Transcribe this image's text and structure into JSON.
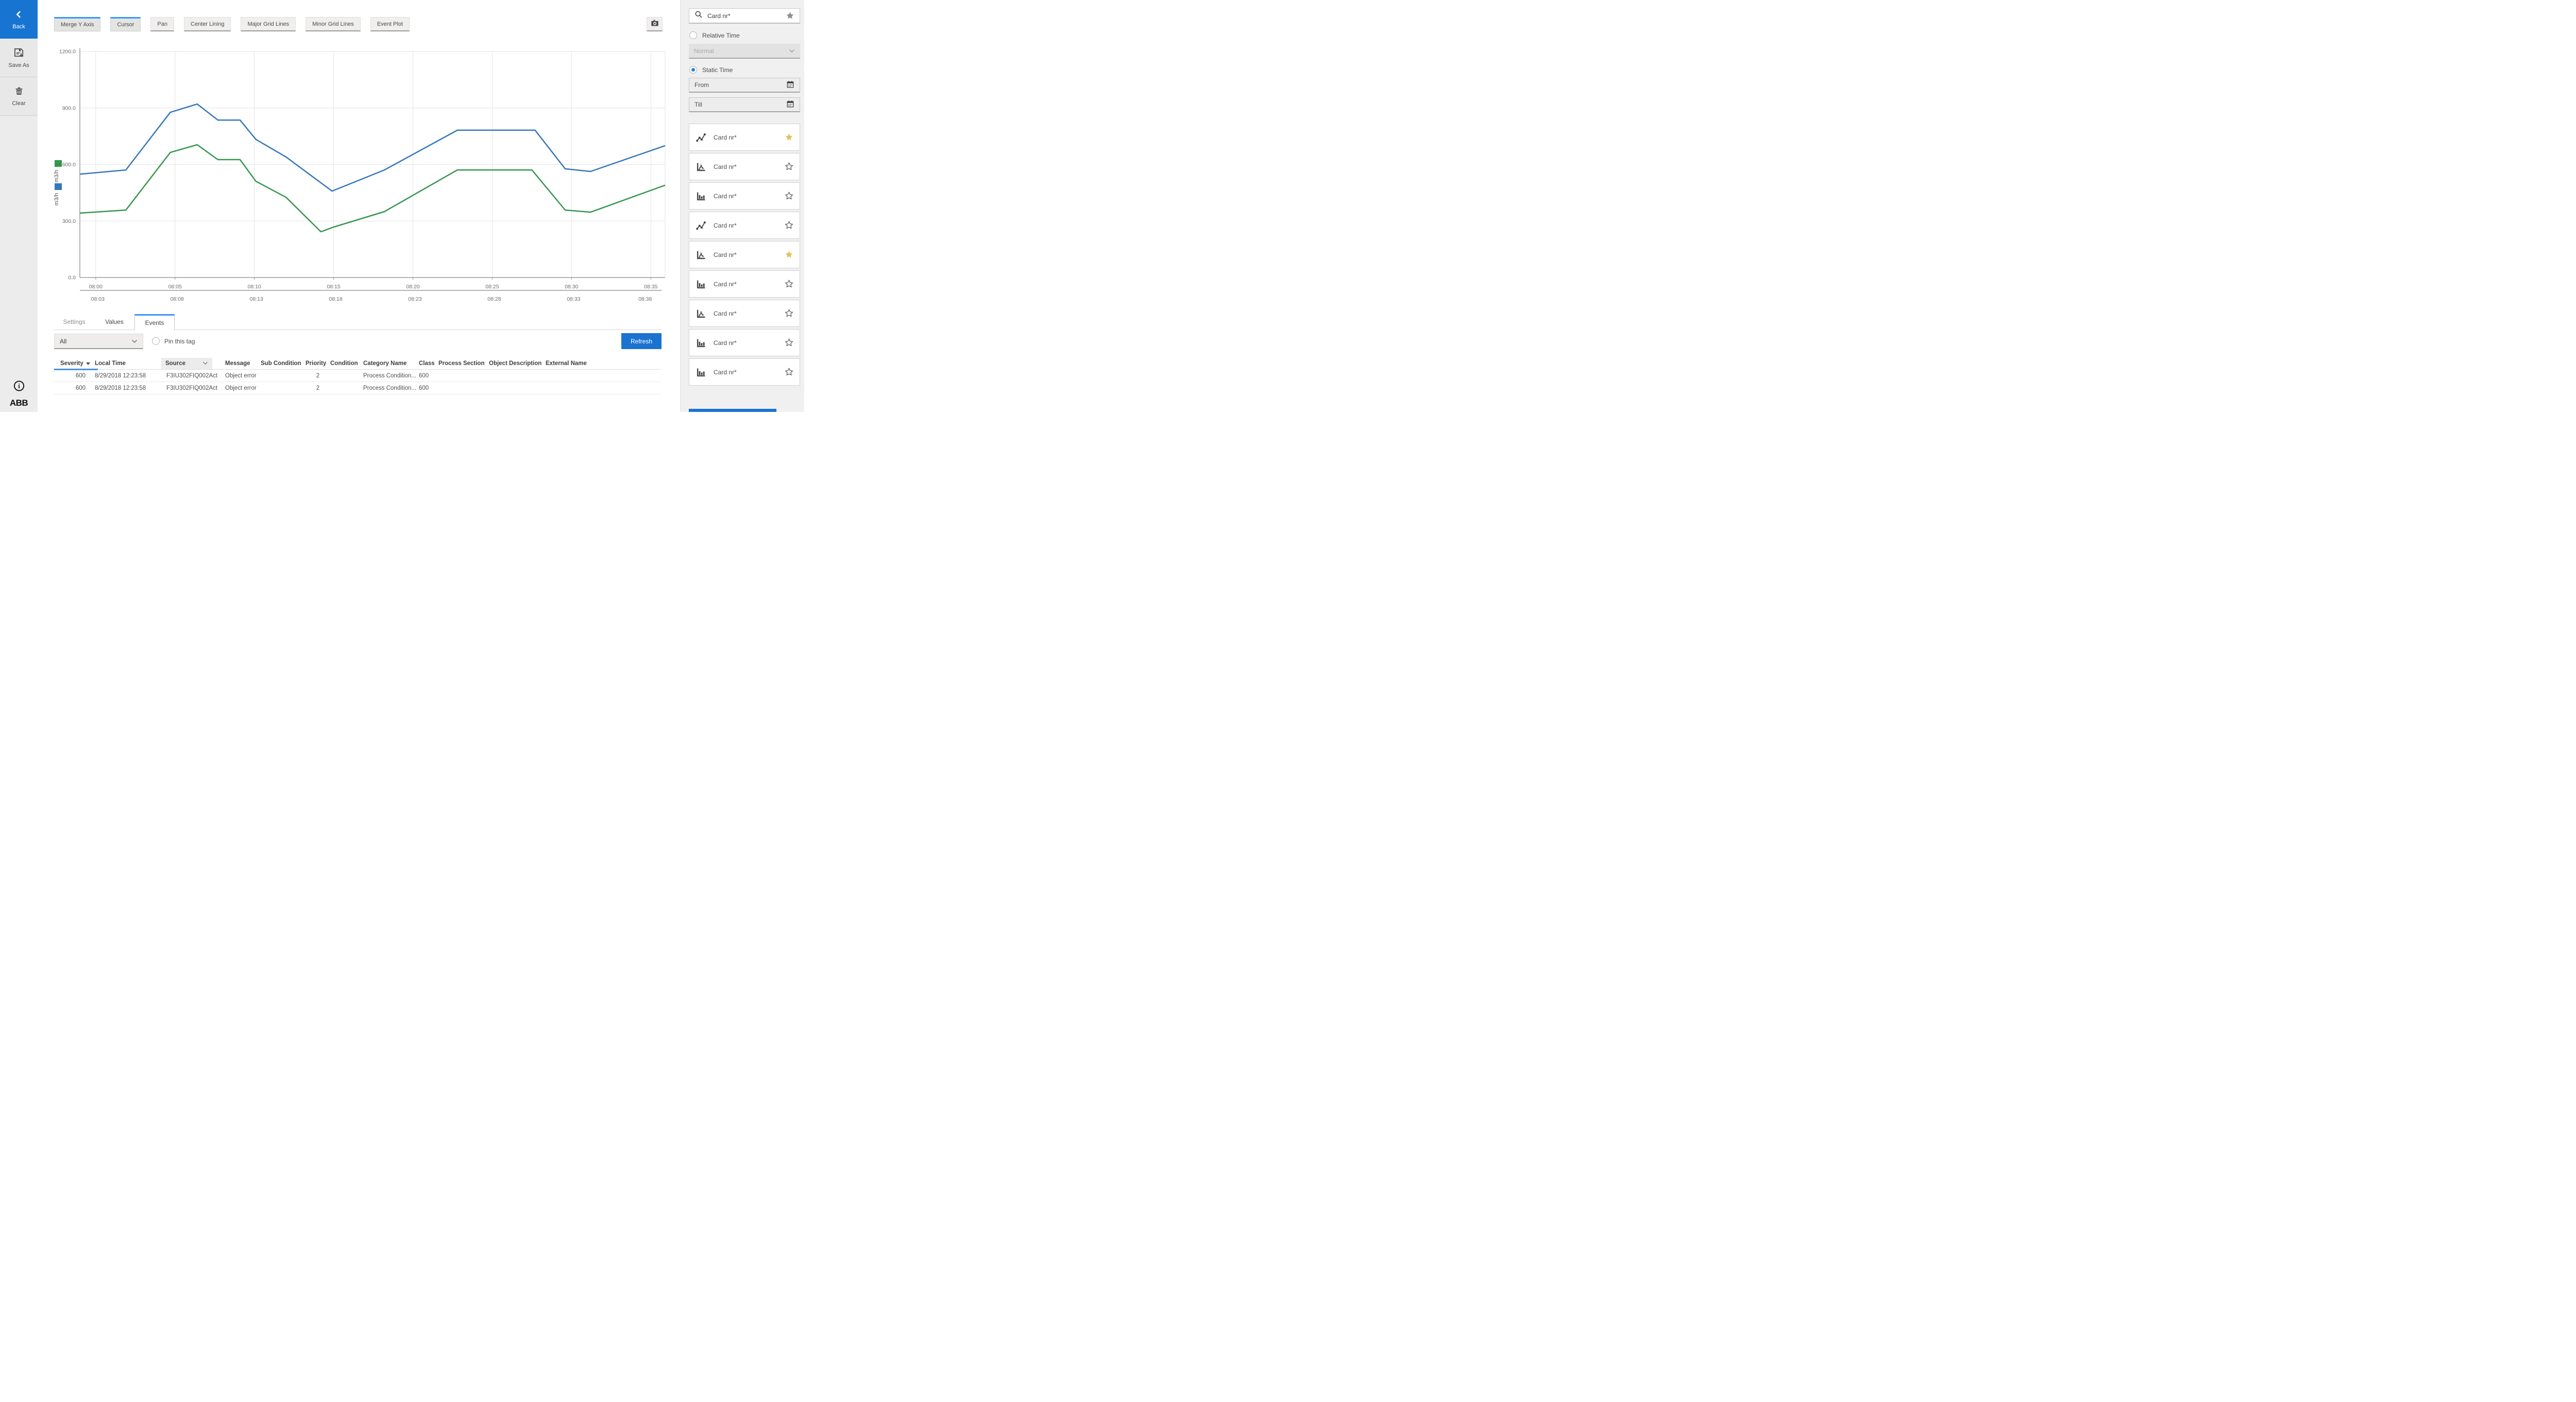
{
  "app": {
    "accent": "#1a73d0",
    "accent_bright": "#3a97f5",
    "favorite_star_color": "#e2c25f",
    "brand": "ABB"
  },
  "left_sidebar": {
    "back": "Back",
    "save_as": "Save As",
    "clear": "Clear"
  },
  "toolbar": {
    "buttons": [
      {
        "label": "Merge Y Axis",
        "active": true
      },
      {
        "label": "Cursor",
        "active": true
      },
      {
        "label": "Pan",
        "active": false
      },
      {
        "label": "Center Lining",
        "active": false
      },
      {
        "label": "Major Grid Lines",
        "active": false
      },
      {
        "label": "Minor Grid Lines",
        "active": false
      },
      {
        "label": "Event Plot",
        "active": false
      }
    ],
    "camera_icon": "camera"
  },
  "chart_data": {
    "type": "line",
    "title": "",
    "ylabel": "m3/h",
    "ylim": [
      0,
      1200
    ],
    "yticks": [
      0,
      300,
      600,
      900,
      1200
    ],
    "xlim": [
      -1,
      35.9
    ],
    "grid": true,
    "legend_position": "left-of-axis",
    "x_axis_primary": {
      "ticks": [
        0,
        5,
        10,
        15,
        20,
        25,
        30,
        35
      ],
      "labels": [
        "08:00",
        "08:05",
        "08:10",
        "08:15",
        "08:20",
        "08:25",
        "08:30",
        "08:35"
      ]
    },
    "x_axis_secondary": {
      "ticks": [
        0.13,
        5.13,
        10.13,
        15.13,
        20.13,
        25.13,
        30.13,
        34.64
      ],
      "labels": [
        "08:03",
        "08:08",
        "08:13",
        "08:18",
        "08:23",
        "08:28",
        "08:33",
        "08:38"
      ]
    },
    "series": [
      {
        "name": "m3/h",
        "unit": "m3/h",
        "color": "#3477bb",
        "points": [
          [
            -1,
            549
          ],
          [
            1.9,
            571
          ],
          [
            4.7,
            877
          ],
          [
            6.4,
            921
          ],
          [
            7.7,
            836
          ],
          [
            9.1,
            836
          ],
          [
            10.1,
            733
          ],
          [
            12,
            640
          ],
          [
            14.9,
            459
          ],
          [
            18.2,
            571
          ],
          [
            22.8,
            782
          ],
          [
            27.7,
            782
          ],
          [
            29.6,
            577
          ],
          [
            31.2,
            563
          ],
          [
            35.9,
            700
          ]
        ]
      },
      {
        "name": "m3/h",
        "unit": "m3/h",
        "color": "#35964e",
        "points": [
          [
            -1,
            342
          ],
          [
            1.9,
            358
          ],
          [
            4.7,
            664
          ],
          [
            6.4,
            705
          ],
          [
            7.7,
            626
          ],
          [
            9.1,
            626
          ],
          [
            10.1,
            511
          ],
          [
            12,
            426
          ],
          [
            14.2,
            243
          ],
          [
            15,
            268
          ],
          [
            18.2,
            350
          ],
          [
            22.8,
            571
          ],
          [
            27.5,
            571
          ],
          [
            29.6,
            358
          ],
          [
            31.2,
            347
          ],
          [
            35.9,
            490
          ]
        ]
      }
    ],
    "legend": [
      {
        "unit": "m3/h",
        "color": "#35964e"
      },
      {
        "unit": "m3/h",
        "color": "#3477bb"
      }
    ]
  },
  "tabs": [
    {
      "label": "Settings",
      "active": false
    },
    {
      "label": "Values",
      "active": false
    },
    {
      "label": "Events",
      "active": true
    }
  ],
  "events": {
    "filter_value": "All",
    "pin_label": "Pin this tag",
    "refresh": "Refresh",
    "table": {
      "columns": [
        "Severity",
        "Local Time",
        "Source",
        "Message",
        "Sub Condition",
        "Priority",
        "Condition",
        "Category Name",
        "Class",
        "Process Section",
        "Object Description",
        "External Name"
      ],
      "sorted_column": "Severity",
      "rows": [
        {
          "severity": "600",
          "local_time": "8/29/2018 12:23:58",
          "source": "F3IU302FIQ002Act",
          "message": "Object error",
          "sub_condition": "",
          "priority": "2",
          "condition": "",
          "category_name": "Process Condition...",
          "class": "600",
          "process_section": "",
          "object_description": "",
          "external_name": ""
        },
        {
          "severity": "600",
          "local_time": "8/29/2018 12:23:58",
          "source": "F3IU302FIQ002Act",
          "message": "Object error",
          "sub_condition": "",
          "priority": "2",
          "condition": "",
          "category_name": "Process Condition...",
          "class": "600",
          "process_section": "",
          "object_description": "",
          "external_name": ""
        }
      ]
    }
  },
  "right_sidebar": {
    "search_value": "Card nr*",
    "relative_time_label": "Relative Time",
    "relative_mode_value": "Normal",
    "static_time_label": "Static Time",
    "from_placeholder": "From",
    "till_placeholder": "Till",
    "cards": [
      {
        "label": "Card nr*",
        "icon": "scatter-line",
        "starred": true
      },
      {
        "label": "Card nr*",
        "icon": "line-chart",
        "starred": false
      },
      {
        "label": "Card nr*",
        "icon": "bar-chart",
        "starred": false
      },
      {
        "label": "Card nr*",
        "icon": "scatter-line",
        "starred": false
      },
      {
        "label": "Card nr*",
        "icon": "line-chart",
        "starred": true
      },
      {
        "label": "Card nr*",
        "icon": "bar-chart",
        "starred": false
      },
      {
        "label": "Card nr*",
        "icon": "line-chart",
        "starred": false
      },
      {
        "label": "Card nr*",
        "icon": "bar-chart",
        "starred": false
      },
      {
        "label": "Card nr*",
        "icon": "bar-chart",
        "starred": false
      }
    ]
  }
}
